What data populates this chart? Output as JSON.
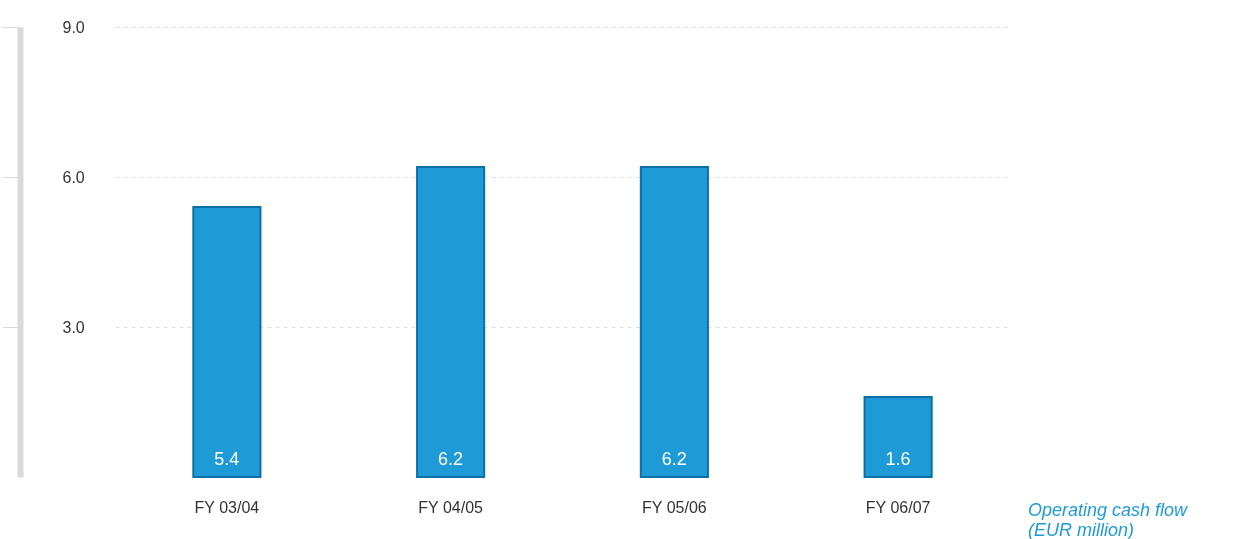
{
  "chart_data": {
    "type": "bar",
    "categories": [
      "FY 03/04",
      "FY 04/05",
      "FY 05/06",
      "FY 06/07"
    ],
    "values": [
      5.4,
      6.2,
      6.2,
      1.6
    ],
    "color": "#1e9bd7",
    "ylim": [
      0,
      9
    ],
    "yticks": [
      {
        "value": 3,
        "label": "3.0"
      },
      {
        "value": 6,
        "label": "6.0"
      },
      {
        "value": 9,
        "label": "9.0"
      }
    ],
    "grid": "y",
    "data_labels": true,
    "annotations": [
      "Operating cash flow\n(EUR million)"
    ]
  }
}
